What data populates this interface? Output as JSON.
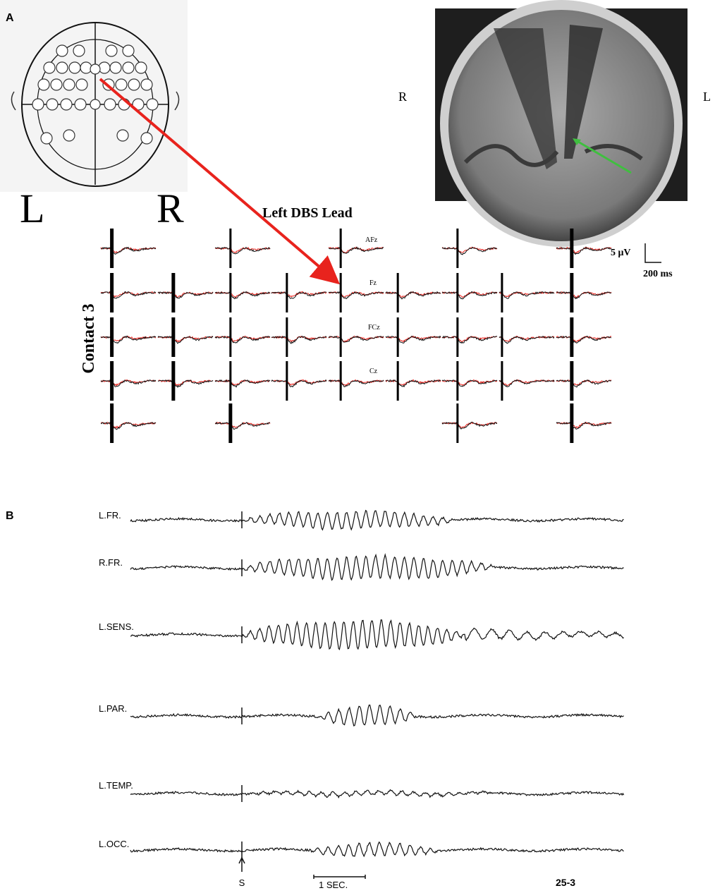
{
  "panel_a": {
    "label": "A",
    "head_left": "L",
    "head_right": "R",
    "mri_right": "R",
    "mri_left": "L",
    "lead_label": "Left DBS Lead",
    "contact_label": "Contact 3",
    "channels": [
      "AFz",
      "Fz",
      "FCz",
      "Cz"
    ],
    "scale_voltage": "5 μV",
    "scale_time": "200 ms"
  },
  "panel_b": {
    "label": "B",
    "channels": [
      "L.FR.",
      "R.FR.",
      "L.SENS.",
      "L.PAR.",
      "L.TEMP.",
      "L.OCC."
    ],
    "stimulus": "S",
    "time_scale": "1 SEC.",
    "record_id": "25-3"
  }
}
